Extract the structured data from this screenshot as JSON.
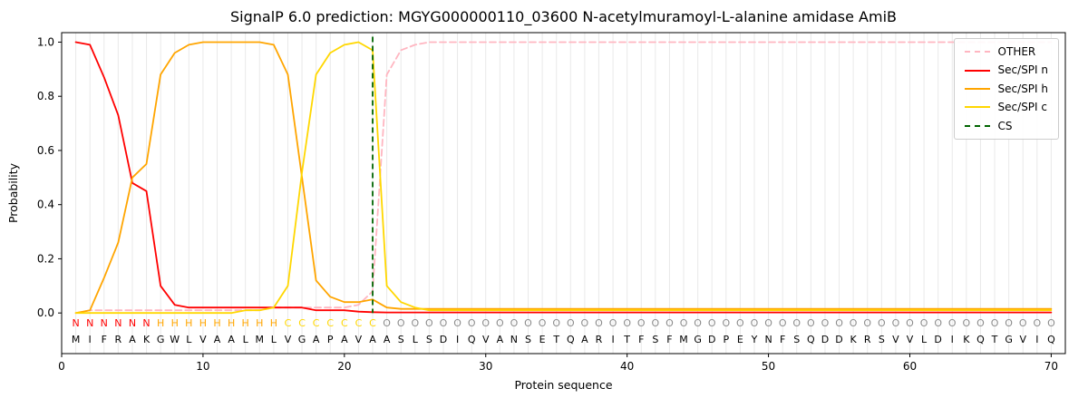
{
  "chart_data": {
    "type": "line",
    "title": "SignalP 6.0 prediction: MGYG000000110_03600 N-acetylmuramoyl-L-alanine amidase AmiB",
    "xlabel": "Protein sequence",
    "ylabel": "Probability",
    "x_ticks": [
      0,
      10,
      20,
      30,
      40,
      50,
      60,
      70
    ],
    "y_ticks": [
      "0.0",
      "0.2",
      "0.4",
      "0.6",
      "0.8",
      "1.0"
    ],
    "x_range": [
      1,
      70
    ],
    "xlim": [
      0,
      71
    ],
    "ylim": [
      0,
      1
    ],
    "grid": "vertical-per-residue",
    "legend_position": "upper right",
    "cs_position": 22,
    "cs_color": "#006400",
    "sequence": "MIFRAKGWLVAALMLVGAPAVAASLSDIQVANSETQARITFSFMGDPEYNFSQDDKRSVVLDIKQTGVIQ",
    "regions": "NNNNNNHHHHHHHHHCCCCCCCOOOOOOOOOOOOOOOOOOOOOOOOOOOOOOOOOOOOOOOOOOOOOOOO",
    "region_colors": {
      "N": "#ff0000",
      "H": "#ffa500",
      "C": "#ffd700",
      "O": "#8c8c8c"
    },
    "series": [
      {
        "key": "other",
        "name": "OTHER",
        "color": "#ffb6c1",
        "dashed": true,
        "values": [
          0.0,
          0.01,
          0.01,
          0.01,
          0.01,
          0.01,
          0.01,
          0.01,
          0.01,
          0.01,
          0.01,
          0.01,
          0.01,
          0.01,
          0.02,
          0.02,
          0.02,
          0.02,
          0.02,
          0.02,
          0.03,
          0.08,
          0.88,
          0.97,
          0.99,
          1.0,
          1.0,
          1.0,
          1.0,
          1.0,
          1.0,
          1.0,
          1.0,
          1.0,
          1.0,
          1.0,
          1.0,
          1.0,
          1.0,
          1.0,
          1.0,
          1.0,
          1.0,
          1.0,
          1.0,
          1.0,
          1.0,
          1.0,
          1.0,
          1.0,
          1.0,
          1.0,
          1.0,
          1.0,
          1.0,
          1.0,
          1.0,
          1.0,
          1.0,
          1.0,
          1.0,
          1.0,
          1.0,
          1.0,
          1.0,
          1.0,
          1.0,
          1.0,
          1.0,
          1.0
        ]
      },
      {
        "key": "n",
        "name": "Sec/SPI n",
        "color": "#ff0000",
        "dashed": false,
        "values": [
          1.0,
          0.99,
          0.87,
          0.73,
          0.48,
          0.45,
          0.1,
          0.03,
          0.02,
          0.02,
          0.02,
          0.02,
          0.02,
          0.02,
          0.02,
          0.02,
          0.02,
          0.01,
          0.01,
          0.01,
          0.005,
          0.003,
          0.002,
          0.002,
          0.002,
          0.002,
          0.002,
          0.002,
          0.002,
          0.002,
          0.002,
          0.002,
          0.002,
          0.002,
          0.002,
          0.002,
          0.002,
          0.002,
          0.002,
          0.002,
          0.002,
          0.002,
          0.002,
          0.002,
          0.002,
          0.002,
          0.002,
          0.002,
          0.002,
          0.002,
          0.002,
          0.002,
          0.002,
          0.002,
          0.002,
          0.002,
          0.002,
          0.002,
          0.002,
          0.002,
          0.002,
          0.002,
          0.002,
          0.002,
          0.002,
          0.002,
          0.002,
          0.002,
          0.002,
          0.002
        ]
      },
      {
        "key": "h",
        "name": "Sec/SPI h",
        "color": "#ffa500",
        "dashed": false,
        "values": [
          0.0,
          0.01,
          0.13,
          0.26,
          0.5,
          0.55,
          0.88,
          0.96,
          0.99,
          1.0,
          1.0,
          1.0,
          1.0,
          1.0,
          0.99,
          0.88,
          0.5,
          0.12,
          0.06,
          0.04,
          0.04,
          0.05,
          0.02,
          0.015,
          0.015,
          0.015,
          0.015,
          0.015,
          0.015,
          0.015,
          0.015,
          0.015,
          0.015,
          0.015,
          0.015,
          0.015,
          0.015,
          0.015,
          0.015,
          0.015,
          0.015,
          0.015,
          0.015,
          0.015,
          0.015,
          0.015,
          0.015,
          0.015,
          0.015,
          0.015,
          0.015,
          0.015,
          0.015,
          0.015,
          0.015,
          0.015,
          0.015,
          0.015,
          0.015,
          0.015,
          0.015,
          0.015,
          0.015,
          0.015,
          0.015,
          0.015,
          0.015,
          0.015,
          0.015,
          0.015
        ]
      },
      {
        "key": "c",
        "name": "Sec/SPI c",
        "color": "#ffd700",
        "dashed": false,
        "values": [
          0.0,
          0.0,
          0.0,
          0.0,
          0.0,
          0.0,
          0.0,
          0.0,
          0.0,
          0.0,
          0.0,
          0.0,
          0.01,
          0.01,
          0.02,
          0.1,
          0.52,
          0.88,
          0.96,
          0.99,
          1.0,
          0.97,
          0.1,
          0.04,
          0.02,
          0.01,
          0.01,
          0.01,
          0.01,
          0.01,
          0.01,
          0.01,
          0.01,
          0.01,
          0.01,
          0.01,
          0.01,
          0.01,
          0.01,
          0.01,
          0.01,
          0.01,
          0.01,
          0.01,
          0.01,
          0.01,
          0.01,
          0.01,
          0.01,
          0.01,
          0.01,
          0.01,
          0.01,
          0.01,
          0.01,
          0.01,
          0.01,
          0.01,
          0.01,
          0.01,
          0.01,
          0.01,
          0.01,
          0.01,
          0.01,
          0.01,
          0.01,
          0.01,
          0.01,
          0.01
        ]
      }
    ]
  },
  "legend": [
    {
      "label": "OTHER",
      "color": "#ffb6c1",
      "dashed": true
    },
    {
      "label": "Sec/SPI n",
      "color": "#ff0000",
      "dashed": false
    },
    {
      "label": "Sec/SPI h",
      "color": "#ffa500",
      "dashed": false
    },
    {
      "label": "Sec/SPI c",
      "color": "#ffd700",
      "dashed": false
    },
    {
      "label": "CS",
      "color": "#006400",
      "dashed": true
    }
  ]
}
